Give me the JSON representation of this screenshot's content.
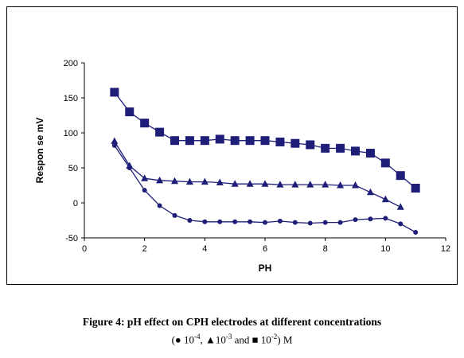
{
  "chart_data": {
    "type": "line",
    "xlabel": "PH",
    "ylabel": "Respon se mV",
    "xlim": [
      0,
      12
    ],
    "ylim": [
      -50,
      200
    ],
    "xticks": [
      "0",
      "2",
      "4",
      "6",
      "8",
      "10",
      "12"
    ],
    "yticks": [
      "-50",
      "0",
      "50",
      "100",
      "150",
      "200"
    ],
    "grid": false,
    "colors": {
      "series": "#1e1e78"
    },
    "series": [
      {
        "marker": "square",
        "x": [
          1,
          1.5,
          2,
          2.5,
          3,
          3.5,
          4,
          4.5,
          5,
          5.5,
          6,
          6.5,
          7,
          7.5,
          8,
          8.5,
          9,
          9.5,
          10,
          10.5,
          11
        ],
        "y": [
          158,
          130,
          114,
          101,
          89,
          89,
          89,
          91,
          89,
          89,
          89,
          87,
          85,
          83,
          78,
          78,
          74,
          71,
          57,
          39,
          21
        ]
      },
      {
        "marker": "triangle",
        "x": [
          1,
          1.5,
          2,
          2.5,
          3,
          3.5,
          4,
          4.5,
          5,
          5.5,
          6,
          6.5,
          7,
          7.5,
          8,
          8.5,
          9,
          9.5,
          10,
          10.5
        ],
        "y": [
          88,
          53,
          35,
          32,
          31,
          30,
          30,
          29,
          27,
          27,
          27,
          26,
          26,
          26,
          26,
          25,
          25,
          15,
          5,
          -6
        ]
      },
      {
        "marker": "circle",
        "x": [
          1,
          1.5,
          2,
          2.5,
          3,
          3.5,
          4,
          4.5,
          5,
          5.5,
          6,
          6.5,
          7,
          7.5,
          8,
          8.5,
          9,
          9.5,
          10,
          10.5,
          11
        ],
        "y": [
          82,
          50,
          18,
          -4,
          -18,
          -25,
          -27,
          -27,
          -27,
          -27,
          -28,
          -26,
          -28,
          -29,
          -28,
          -28,
          -24,
          -23,
          -22,
          -30,
          -42
        ]
      }
    ]
  },
  "caption": {
    "title": "Figure 4: pH effect on CPH electrodes at different concentrations",
    "legend_open": "(● 10",
    "exp1": "-4",
    "legend_mid1": ",  ▲10",
    "exp2": "-3",
    "legend_mid2": " and ■ 10",
    "exp3": "-2",
    "legend_close": ") M"
  }
}
